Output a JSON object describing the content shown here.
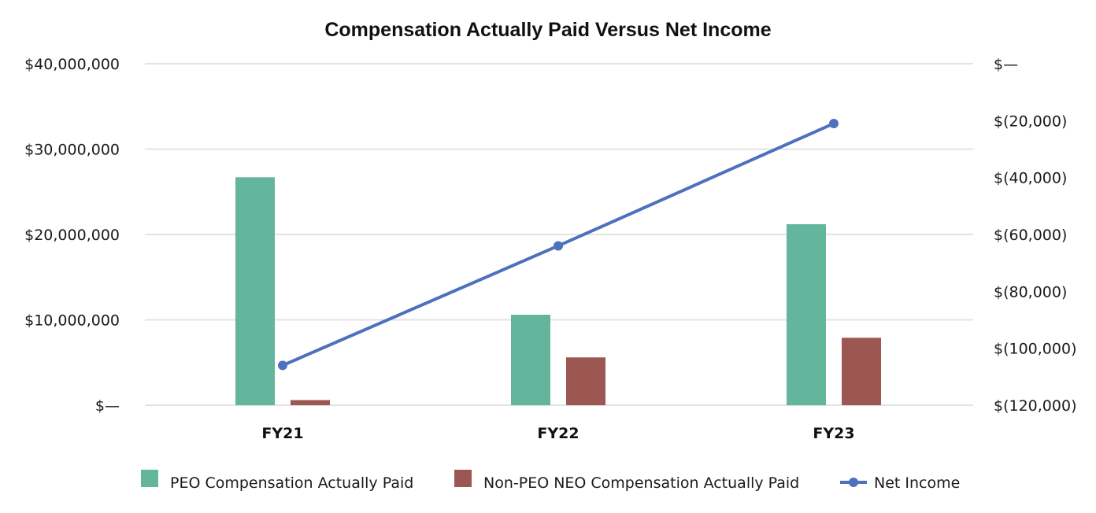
{
  "chart_data": {
    "type": "bar",
    "title": "Compensation Actually Paid Versus Net Income",
    "categories": [
      "FY21",
      "FY22",
      "FY23"
    ],
    "y_left": {
      "ylim": [
        0,
        40000000
      ],
      "ticks": [
        0,
        10000000,
        20000000,
        30000000,
        40000000
      ],
      "tick_labels": [
        "$—",
        "$10,000,000",
        "$20,000,000",
        "$30,000,000",
        "$40,000,000"
      ]
    },
    "y_right": {
      "ylim": [
        -120000,
        0
      ],
      "ticks": [
        -120000,
        -100000,
        -80000,
        -60000,
        -40000,
        -20000,
        0
      ],
      "tick_labels": [
        "$(120,000)",
        "$(100,000)",
        "$(80,000)",
        "$(60,000)",
        "$(40,000)",
        "$(20,000)",
        "$—"
      ]
    },
    "grid": true,
    "legend_position": "bottom",
    "series": [
      {
        "name": "PEO Compensation Actually Paid",
        "type": "bar",
        "axis": "left",
        "color": "#63b59b",
        "values": [
          26700000,
          10600000,
          21200000
        ]
      },
      {
        "name": "Non-PEO NEO Compensation Actually Paid",
        "type": "bar",
        "axis": "left",
        "color": "#9c5753",
        "values": [
          600000,
          5600000,
          7900000
        ]
      },
      {
        "name": "Net Income",
        "type": "line",
        "axis": "right",
        "color": "#4e70be",
        "values": [
          -106000,
          -64000,
          -21000
        ]
      }
    ]
  }
}
